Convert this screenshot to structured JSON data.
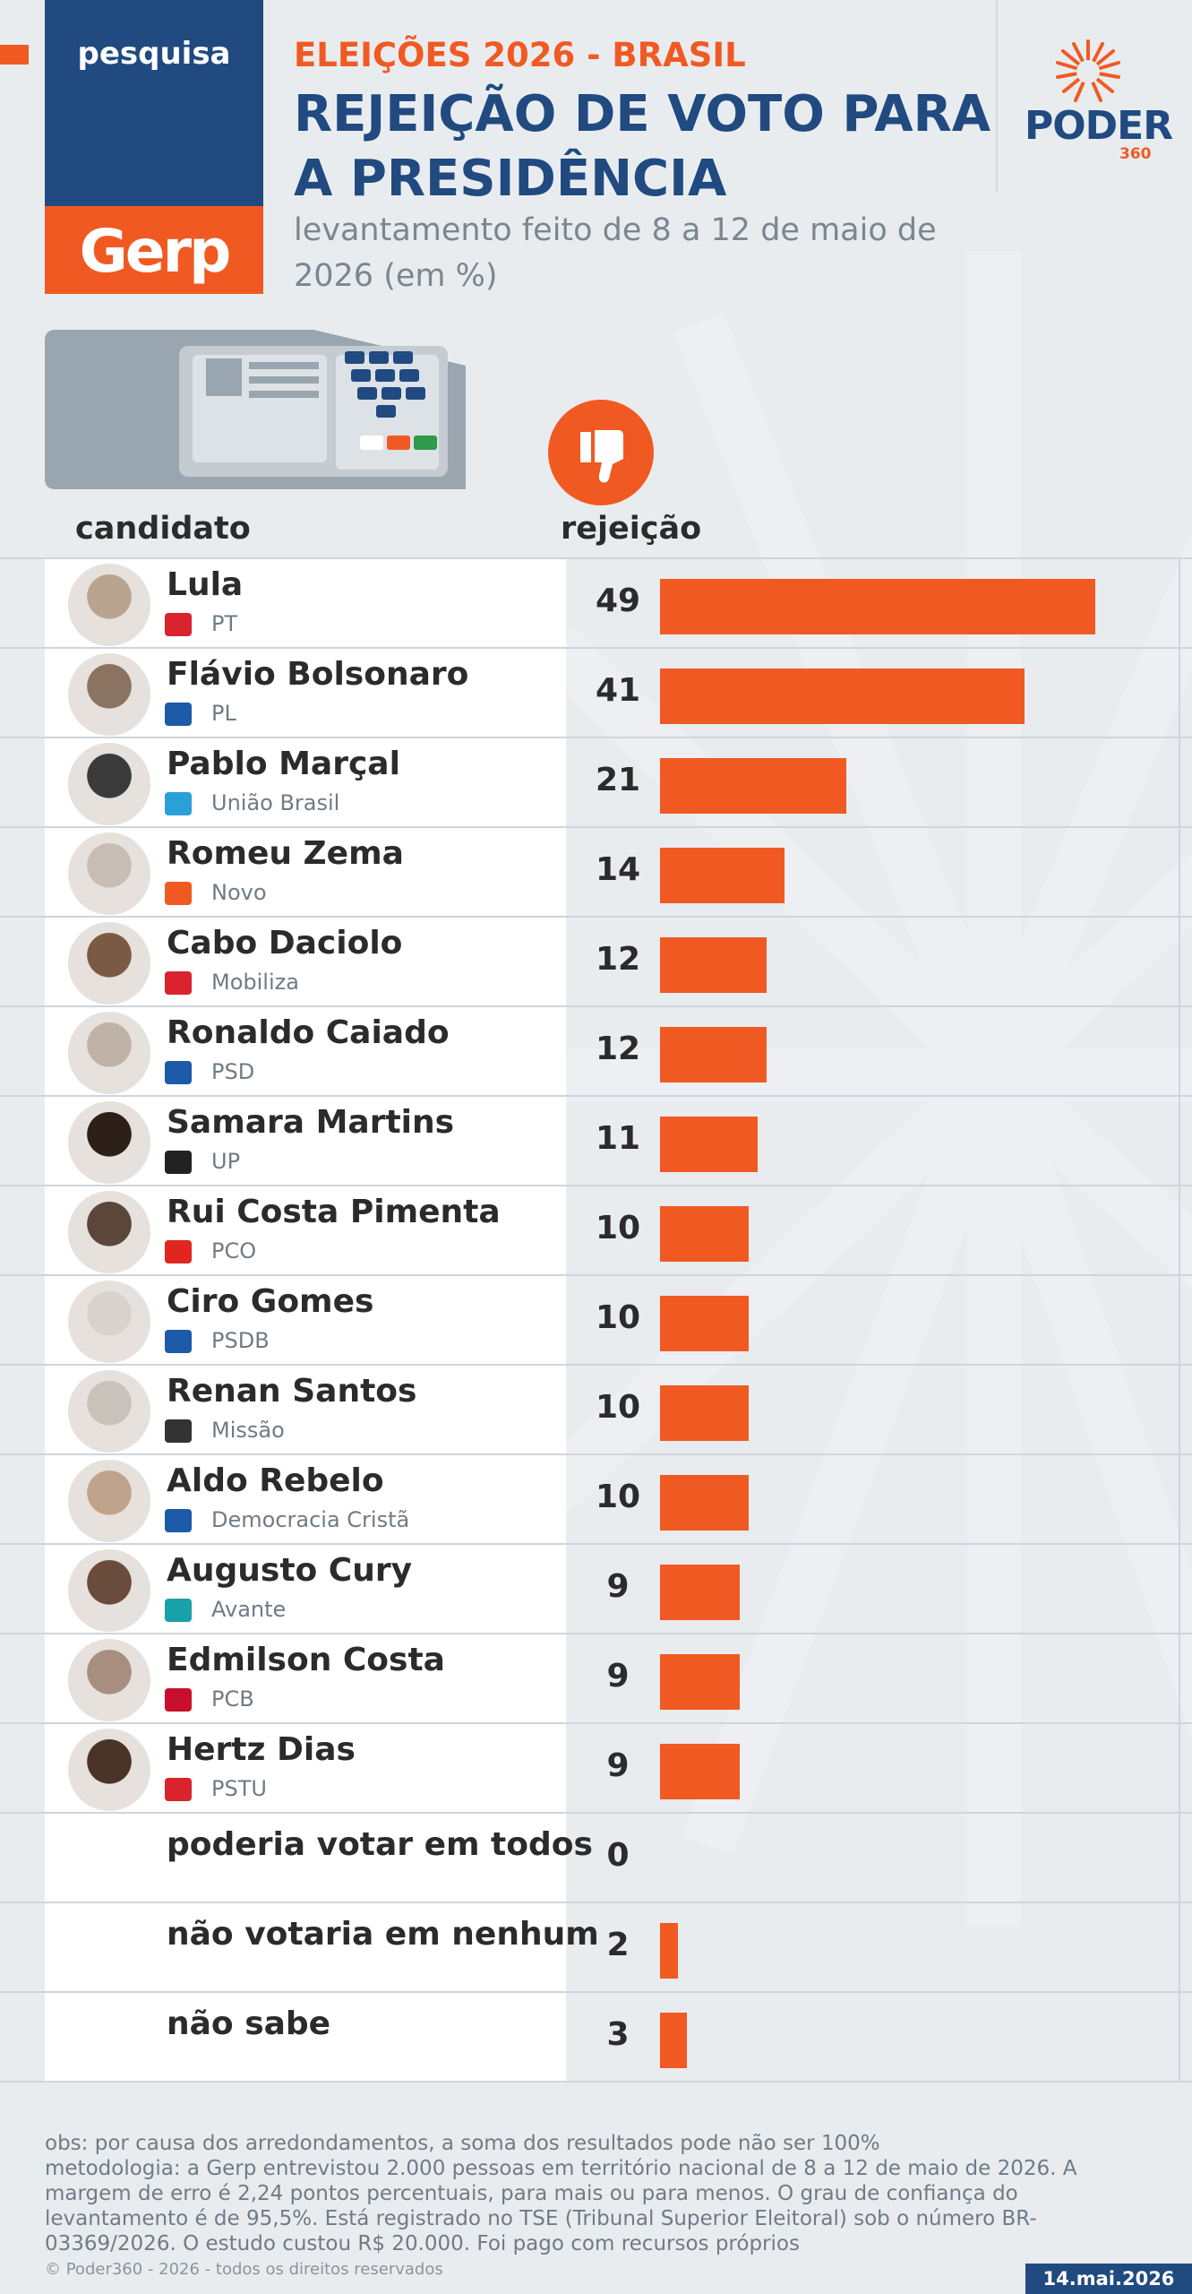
{
  "header": {
    "brand_top": "pesquisa",
    "brand_bottom": "Gerp",
    "kicker": "ELEIÇÕES 2026 - BRASIL",
    "title": "REJEIÇÃO DE VOTO PARA A PRESIDÊNCIA",
    "subtitle": "levantamento feito de 8 a 12 de maio de 2026 (em %)",
    "publisher": "PODER",
    "publisher_num": "360"
  },
  "columns": {
    "candidate": "candidato",
    "rejection": "rejeição"
  },
  "colors": {
    "accent": "#f05a22",
    "navy": "#204a80",
    "background": "#e9ecef"
  },
  "chart_data": {
    "type": "bar",
    "orientation": "horizontal",
    "categories": [
      "Lula",
      "Flávio Bolsonaro",
      "Pablo Marçal",
      "Romeu Zema",
      "Cabo Daciolo",
      "Ronaldo Caiado",
      "Samara Martins",
      "Rui Costa Pimenta",
      "Ciro Gomes",
      "Renan Santos",
      "Aldo Rebelo",
      "Augusto Cury",
      "Edmilson Costa",
      "Hertz Dias",
      "poderia votar em todos",
      "não votaria em nenhum",
      "não sabe"
    ],
    "parties": [
      "PT",
      "PL",
      "União Brasil",
      "Novo",
      "Mobiliza",
      "PSD",
      "UP",
      "PCO",
      "PSDB",
      "Missão",
      "Democracia Cristã",
      "Avante",
      "PCB",
      "PSTU",
      "",
      "",
      ""
    ],
    "values": [
      49,
      41,
      21,
      14,
      12,
      12,
      11,
      10,
      10,
      10,
      10,
      9,
      9,
      9,
      0,
      2,
      3
    ],
    "value_labels": [
      "49",
      "41",
      "21",
      "14",
      "12",
      "12",
      "11",
      "10",
      "10",
      "10",
      "10",
      "9",
      "9",
      "9",
      "0",
      "2",
      "3"
    ],
    "xlim": [
      0,
      50
    ],
    "unit": "%",
    "legend": "none",
    "grid": false
  },
  "footer": {
    "obs": "obs: por causa dos arredondamentos, a soma dos resultados pode não ser 100%",
    "method": "metodologia: a Gerp entrevistou 2.000 pessoas em território nacional de 8 a 12 de maio de 2026. A margem de erro é 2,24 pontos percentuais, para mais ou para menos. O grau de confiança do levantamento é de 95,5%. Está registrado no TSE (Tribunal Superior Eleitoral) sob o número BR-03369/2026. O estudo custou R$ 20.000. Foi pago com recursos próprios",
    "copyright": "© Poder360 - 2026 - todos os direitos reservados",
    "date": "14.mai.2026"
  }
}
